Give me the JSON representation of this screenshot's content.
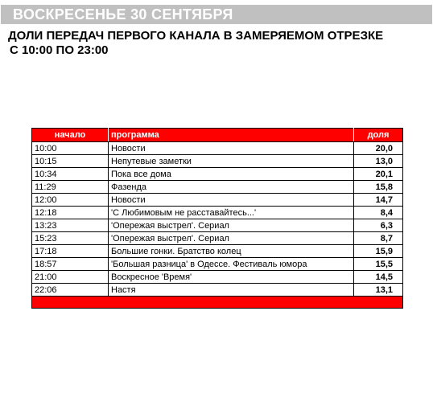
{
  "header": {
    "day": "ВОСКРЕСЕНЬЕ 30 СЕНТЯБРЯ"
  },
  "subtitle": {
    "line1": "ДОЛИ ПЕРЕДАЧ ПЕРВОГО КАНАЛА В ЗАМЕРЯЕМОМ ОТРЕЗКЕ",
    "line2": "С 10:00 ПО 23:00"
  },
  "colors": {
    "header_bg": "#c0c0c0",
    "table_accent": "#ff0000"
  },
  "table": {
    "columns": {
      "start": "начало",
      "program": "программа",
      "share": "доля"
    },
    "rows": [
      {
        "start": "10:00",
        "program": "Новости",
        "share": "20,0"
      },
      {
        "start": "10:15",
        "program": "Непутевые заметки",
        "share": "13,0"
      },
      {
        "start": "10:34",
        "program": "Пока все дома",
        "share": "20,1"
      },
      {
        "start": "11:29",
        "program": "Фазенда",
        "share": "15,8"
      },
      {
        "start": "12:00",
        "program": "Новости",
        "share": "14,7"
      },
      {
        "start": "12:18",
        "program": "'С Любимовым не расставайтесь...'",
        "share": "8,4"
      },
      {
        "start": "13:23",
        "program": "'Опережая выстрел'. Сериал",
        "share": "6,3"
      },
      {
        "start": "15:23",
        "program": "'Опережая выстрел'. Сериал",
        "share": "8,7"
      },
      {
        "start": "17:18",
        "program": "Большие гонки. Братство колец",
        "share": "15,9"
      },
      {
        "start": "18:57",
        "program": "'Большая разница' в Одессе. Фестиваль юмора",
        "share": "15,5"
      },
      {
        "start": "21:00",
        "program": "Воскресное 'Время'",
        "share": "14,5"
      },
      {
        "start": "22:06",
        "program": "Настя",
        "share": "13,1"
      }
    ]
  }
}
